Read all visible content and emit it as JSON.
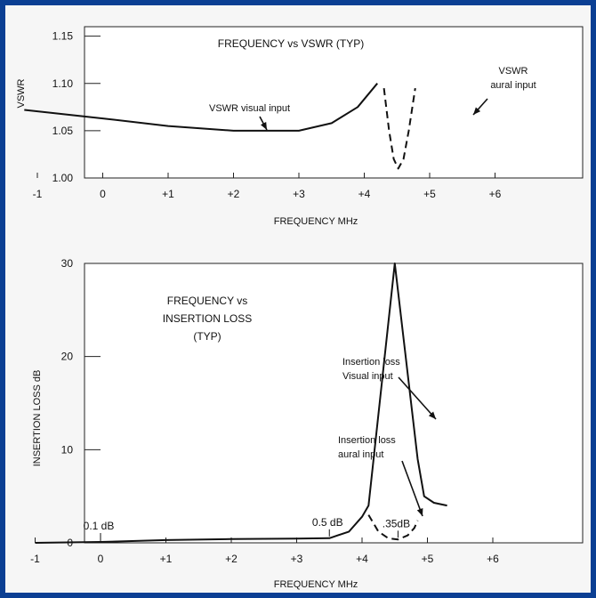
{
  "frame": {
    "border_color": "#0b3f93",
    "background": "#f6f6f6"
  },
  "chart_data": [
    {
      "type": "line",
      "title": "FREQUENCY vs VSWR  (TYP)",
      "xlabel": "FREQUENCY MHz",
      "ylabel": "VSWR",
      "xlim": [
        -1.5,
        6.5
      ],
      "ylim": [
        1.0,
        1.16
      ],
      "x_ticks": [
        -1,
        0,
        1,
        2,
        3,
        4,
        5,
        6
      ],
      "x_tick_labels": [
        "-1",
        "0",
        "+1",
        "+2",
        "+3",
        "+4",
        "+5",
        "+6"
      ],
      "y_ticks": [
        1.0,
        1.05,
        1.1,
        1.15
      ],
      "y_tick_labels": [
        "1.00",
        "1.05",
        "1.10",
        "1.15"
      ],
      "grid": false,
      "series": [
        {
          "name": "VSWR visual input",
          "style": "solid",
          "x": [
            -1.2,
            0,
            1,
            2,
            3,
            3.5,
            3.9,
            4.2
          ],
          "y": [
            1.072,
            1.063,
            1.055,
            1.05,
            1.05,
            1.058,
            1.075,
            1.1
          ]
        },
        {
          "name": "VSWR aural input",
          "style": "dashed",
          "x": [
            4.3,
            4.38,
            4.45,
            4.52,
            4.6,
            4.68,
            4.78
          ],
          "y": [
            1.095,
            1.05,
            1.02,
            1.01,
            1.02,
            1.05,
            1.095
          ]
        }
      ],
      "annotations": [
        {
          "text": "VSWR visual input",
          "points_to": [
            2.85,
            1.051
          ]
        },
        {
          "text": "VSWR\naural input",
          "points_to": [
            4.7,
            1.055
          ]
        }
      ]
    },
    {
      "type": "line",
      "title": "FREQUENCY vs\nINSERTION LOSS\n(TYP)",
      "xlabel": "FREQUENCY MHz",
      "ylabel": "INSERTION LOSS dB",
      "xlim": [
        -1.5,
        6.5
      ],
      "ylim": [
        0,
        30
      ],
      "x_ticks": [
        -1,
        0,
        1,
        2,
        3,
        4,
        5,
        6
      ],
      "x_tick_labels": [
        "-1",
        "0",
        "+1",
        "+2",
        "+3",
        "+4",
        "+5",
        "+6"
      ],
      "y_ticks": [
        0,
        10,
        20,
        30
      ],
      "y_tick_labels": [
        "0",
        "10",
        "20",
        "30"
      ],
      "grid": false,
      "series": [
        {
          "name": "Insertion loss Visual input",
          "style": "solid",
          "x": [
            -1,
            0,
            1,
            2,
            3,
            3.5,
            3.8,
            4.0,
            4.1,
            4.5,
            4.85,
            4.95,
            5.1,
            5.3
          ],
          "y": [
            0,
            0.1,
            0.3,
            0.4,
            0.45,
            0.5,
            1.2,
            2.8,
            4.0,
            30,
            9,
            5,
            4.3,
            4.0
          ]
        },
        {
          "name": "Insertion loss aural input",
          "style": "dashed",
          "x": [
            4.1,
            4.25,
            4.4,
            4.55,
            4.7,
            4.8,
            4.85
          ],
          "y": [
            3.0,
            1.2,
            0.5,
            0.35,
            0.8,
            1.6,
            2.4
          ]
        }
      ],
      "data_labels": [
        {
          "text": "0.1 dB",
          "x": 0,
          "y": 0.1
        },
        {
          "text": "0.5 dB",
          "x": 3.5,
          "y": 0.5
        },
        {
          "text": ".35dB",
          "x": 4.55,
          "y": 0.35
        }
      ],
      "annotations": [
        {
          "text": "Insertion loss\nVisual input",
          "points_to": [
            4.38,
            21
          ]
        },
        {
          "text": "Insertion loss\naural input",
          "points_to": [
            4.13,
            2.8
          ]
        }
      ]
    }
  ]
}
